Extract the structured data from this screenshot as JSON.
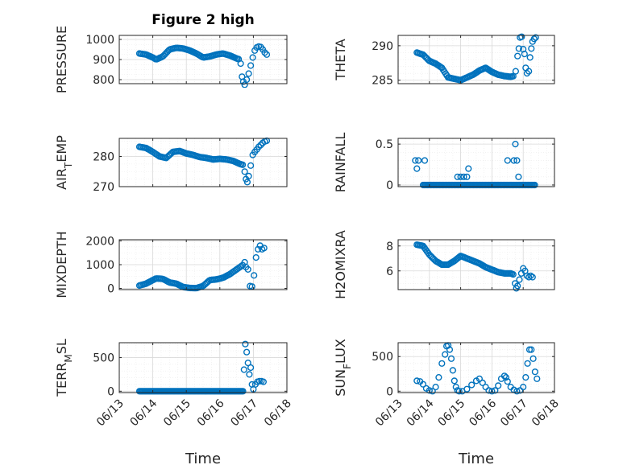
{
  "figure": {
    "title": "Figure 2 high"
  },
  "style": {
    "marker_color": "#0072BD",
    "grid_major": "#d9d9d9",
    "grid_minor": "#ebebeb",
    "axis_color": "#262626"
  },
  "chart_data": [
    {
      "type": "scatter",
      "ylabel": "PRESSURE",
      "xlabel": "",
      "xlim": [
        0,
        5
      ],
      "xticks": [
        0,
        1,
        2,
        3,
        4,
        5
      ],
      "xticklabels": [],
      "ylim": [
        780,
        1020
      ],
      "yticks": [
        800,
        900,
        1000
      ],
      "ytickLabels": [
        "800",
        "900",
        "1000"
      ],
      "x_minor_step": 0.25,
      "y_minor_step": 25,
      "grid": true,
      "knots": [
        [
          0.6,
          930
        ],
        [
          0.8,
          925
        ],
        [
          1.0,
          910
        ],
        [
          1.1,
          900
        ],
        [
          1.3,
          915
        ],
        [
          1.5,
          950
        ],
        [
          1.7,
          958
        ],
        [
          1.9,
          955
        ],
        [
          2.1,
          945
        ],
        [
          2.3,
          930
        ],
        [
          2.5,
          910
        ],
        [
          2.7,
          915
        ],
        [
          2.9,
          925
        ],
        [
          3.1,
          930
        ],
        [
          3.3,
          920
        ],
        [
          3.5,
          905
        ],
        [
          3.6,
          900
        ]
      ],
      "extra_points": [
        [
          3.62,
          880
        ],
        [
          3.66,
          815
        ],
        [
          3.7,
          790
        ],
        [
          3.74,
          775
        ],
        [
          3.8,
          800
        ],
        [
          3.86,
          830
        ],
        [
          3.92,
          870
        ],
        [
          3.98,
          910
        ],
        [
          4.04,
          945
        ],
        [
          4.1,
          960
        ],
        [
          4.16,
          965
        ],
        [
          4.22,
          962
        ],
        [
          4.28,
          950
        ],
        [
          4.34,
          935
        ],
        [
          4.4,
          925
        ]
      ]
    },
    {
      "type": "scatter",
      "ylabel": "THETA",
      "xlabel": "",
      "xlim": [
        0,
        5
      ],
      "xticks": [
        0,
        1,
        2,
        3,
        4,
        5
      ],
      "xticklabels": [],
      "ylim": [
        284.5,
        291.5
      ],
      "yticks": [
        285,
        290
      ],
      "ytickLabels": [
        "285",
        "290"
      ],
      "x_minor_step": 0.25,
      "y_minor_step": 1,
      "grid": true,
      "knots": [
        [
          0.6,
          289
        ],
        [
          0.8,
          288.7
        ],
        [
          1.0,
          287.8
        ],
        [
          1.2,
          287.4
        ],
        [
          1.4,
          286.8
        ],
        [
          1.6,
          285.4
        ],
        [
          1.8,
          285.2
        ],
        [
          2.0,
          285.0
        ],
        [
          2.2,
          285.4
        ],
        [
          2.4,
          285.8
        ],
        [
          2.6,
          286.4
        ],
        [
          2.8,
          286.8
        ],
        [
          3.0,
          286.2
        ],
        [
          3.2,
          285.8
        ],
        [
          3.4,
          285.6
        ],
        [
          3.6,
          285.5
        ],
        [
          3.7,
          285.6
        ]
      ],
      "extra_points": [
        [
          3.76,
          286.3
        ],
        [
          3.82,
          288.5
        ],
        [
          3.86,
          289.6
        ],
        [
          3.9,
          291.2
        ],
        [
          3.95,
          291.3
        ],
        [
          4.0,
          289.5
        ],
        [
          4.04,
          288.8
        ],
        [
          4.08,
          286.8
        ],
        [
          4.12,
          286.0
        ],
        [
          4.18,
          286.3
        ],
        [
          4.22,
          288.3
        ],
        [
          4.26,
          289.6
        ],
        [
          4.3,
          290.6
        ],
        [
          4.35,
          291.0
        ],
        [
          4.4,
          291.2
        ]
      ]
    },
    {
      "type": "scatter",
      "ylabel": "AIR_TEMP",
      "xlabel": "",
      "xlim": [
        0,
        5
      ],
      "xticks": [
        0,
        1,
        2,
        3,
        4,
        5
      ],
      "xticklabels": [],
      "ylim": [
        270,
        286
      ],
      "yticks": [
        270,
        280
      ],
      "ytickLabels": [
        "270",
        "280"
      ],
      "x_minor_step": 0.25,
      "y_minor_step": 2.5,
      "grid": true,
      "knots": [
        [
          0.6,
          283.2
        ],
        [
          0.8,
          282.8
        ],
        [
          1.0,
          281.5
        ],
        [
          1.2,
          280.0
        ],
        [
          1.4,
          279.5
        ],
        [
          1.6,
          281.5
        ],
        [
          1.8,
          281.8
        ],
        [
          2.0,
          281.0
        ],
        [
          2.2,
          280.5
        ],
        [
          2.4,
          279.8
        ],
        [
          2.6,
          279.5
        ],
        [
          2.8,
          279.0
        ],
        [
          3.0,
          279.2
        ],
        [
          3.2,
          279.0
        ],
        [
          3.4,
          278.5
        ],
        [
          3.6,
          277.5
        ],
        [
          3.7,
          277.2
        ]
      ],
      "extra_points": [
        [
          3.74,
          275
        ],
        [
          3.78,
          272.5
        ],
        [
          3.82,
          271.5
        ],
        [
          3.86,
          273.5
        ],
        [
          3.92,
          277
        ],
        [
          3.98,
          280.5
        ],
        [
          4.04,
          281.5
        ],
        [
          4.1,
          282.3
        ],
        [
          4.16,
          283.2
        ],
        [
          4.22,
          283.8
        ],
        [
          4.28,
          284.5
        ],
        [
          4.34,
          285.0
        ],
        [
          4.4,
          285.2
        ]
      ]
    },
    {
      "type": "scatter",
      "ylabel": "RAINFALL",
      "xlabel": "",
      "xlim": [
        0,
        5
      ],
      "xticks": [
        0,
        1,
        2,
        3,
        4,
        5
      ],
      "xticklabels": [],
      "ylim": [
        -0.02,
        0.57
      ],
      "yticks": [
        0,
        0.5
      ],
      "ytickLabels": [
        "0",
        "0.5"
      ],
      "x_minor_step": 0.25,
      "y_minor_step": 0.1,
      "grid": true,
      "knots": [],
      "zero_run": [
        0.8,
        4.4,
        0.035
      ],
      "extra_points": [
        [
          0.55,
          0.3
        ],
        [
          0.6,
          0.2
        ],
        [
          0.65,
          0.3
        ],
        [
          0.85,
          0.3
        ],
        [
          1.9,
          0.1
        ],
        [
          2.0,
          0.1
        ],
        [
          2.1,
          0.1
        ],
        [
          2.2,
          0.1
        ],
        [
          2.25,
          0.2
        ],
        [
          3.5,
          0.3
        ],
        [
          3.7,
          0.3
        ],
        [
          3.75,
          0.5
        ],
        [
          3.8,
          0.3
        ],
        [
          3.85,
          0.1
        ]
      ]
    },
    {
      "type": "scatter",
      "ylabel": "MIXDEPTH",
      "xlabel": "",
      "xlim": [
        0,
        5
      ],
      "xticks": [
        0,
        1,
        2,
        3,
        4,
        5
      ],
      "xticklabels": [],
      "ylim": [
        -50,
        2050
      ],
      "yticks": [
        0,
        1000,
        2000
      ],
      "ytickLabels": [
        "0",
        "1000",
        "2000"
      ],
      "x_minor_step": 0.25,
      "y_minor_step": 250,
      "grid": true,
      "knots": [
        [
          0.6,
          120
        ],
        [
          0.8,
          200
        ],
        [
          1.0,
          350
        ],
        [
          1.1,
          420
        ],
        [
          1.3,
          400
        ],
        [
          1.5,
          250
        ],
        [
          1.7,
          200
        ],
        [
          1.9,
          60
        ],
        [
          2.1,
          20
        ],
        [
          2.3,
          10
        ],
        [
          2.5,
          100
        ],
        [
          2.7,
          350
        ],
        [
          2.9,
          380
        ],
        [
          3.1,
          450
        ],
        [
          3.3,
          600
        ],
        [
          3.5,
          800
        ],
        [
          3.7,
          1000
        ]
      ],
      "extra_points": [
        [
          3.74,
          1100
        ],
        [
          3.78,
          900
        ],
        [
          3.84,
          800
        ],
        [
          3.9,
          100
        ],
        [
          3.96,
          80
        ],
        [
          4.02,
          550
        ],
        [
          4.08,
          1300
        ],
        [
          4.14,
          1650
        ],
        [
          4.2,
          1800
        ],
        [
          4.26,
          1650
        ],
        [
          4.32,
          1700
        ]
      ]
    },
    {
      "type": "scatter",
      "ylabel": "H2OMIXRA",
      "xlabel": "",
      "xlim": [
        0,
        5
      ],
      "xticks": [
        0,
        1,
        2,
        3,
        4,
        5
      ],
      "xticklabels": [],
      "ylim": [
        4.5,
        8.5
      ],
      "yticks": [
        6,
        8
      ],
      "ytickLabels": [
        "6",
        "8"
      ],
      "x_minor_step": 0.25,
      "y_minor_step": 0.5,
      "grid": true,
      "knots": [
        [
          0.6,
          8.1
        ],
        [
          0.8,
          8.0
        ],
        [
          1.0,
          7.3
        ],
        [
          1.2,
          6.8
        ],
        [
          1.4,
          6.5
        ],
        [
          1.6,
          6.5
        ],
        [
          1.8,
          6.8
        ],
        [
          2.0,
          7.2
        ],
        [
          2.2,
          7.0
        ],
        [
          2.4,
          6.8
        ],
        [
          2.6,
          6.6
        ],
        [
          2.8,
          6.3
        ],
        [
          3.0,
          6.1
        ],
        [
          3.2,
          5.9
        ],
        [
          3.4,
          5.8
        ],
        [
          3.6,
          5.8
        ],
        [
          3.7,
          5.7
        ]
      ],
      "extra_points": [
        [
          3.74,
          5.0
        ],
        [
          3.78,
          4.6
        ],
        [
          3.82,
          4.8
        ],
        [
          3.88,
          5.3
        ],
        [
          3.94,
          5.8
        ],
        [
          4.0,
          6.2
        ],
        [
          4.06,
          6.0
        ],
        [
          4.12,
          5.6
        ],
        [
          4.18,
          5.5
        ],
        [
          4.24,
          5.6
        ],
        [
          4.3,
          5.5
        ]
      ]
    },
    {
      "type": "scatter",
      "ylabel": "TERR_MSL",
      "xlabel": "Time",
      "xlim": [
        0,
        5
      ],
      "xticks": [
        0,
        1,
        2,
        3,
        4,
        5
      ],
      "xticklabels": [
        "06/13",
        "06/14",
        "06/15",
        "06/16",
        "06/17",
        "06/18"
      ],
      "ylim": [
        -20,
        720
      ],
      "yticks": [
        0,
        500
      ],
      "ytickLabels": [
        "0",
        "500"
      ],
      "x_minor_step": 0.25,
      "y_minor_step": 100,
      "grid": true,
      "knots": [],
      "zero_run": [
        0.6,
        3.7,
        0.03
      ],
      "extra_points": [
        [
          3.72,
          320
        ],
        [
          3.76,
          700
        ],
        [
          3.8,
          580
        ],
        [
          3.84,
          420
        ],
        [
          3.88,
          250
        ],
        [
          3.92,
          350
        ],
        [
          3.96,
          100
        ],
        [
          4.0,
          30
        ],
        [
          4.06,
          100
        ],
        [
          4.12,
          140
        ],
        [
          4.18,
          150
        ],
        [
          4.24,
          150
        ],
        [
          4.3,
          140
        ]
      ]
    },
    {
      "type": "scatter",
      "ylabel": "SUN_FLUX",
      "xlabel": "Time",
      "xlim": [
        0,
        5
      ],
      "xticks": [
        0,
        1,
        2,
        3,
        4,
        5
      ],
      "xticklabels": [
        "06/13",
        "06/14",
        "06/15",
        "06/16",
        "06/17",
        "06/18"
      ],
      "ylim": [
        -20,
        700
      ],
      "yticks": [
        0,
        500
      ],
      "ytickLabels": [
        "0",
        "500"
      ],
      "x_minor_step": 0.25,
      "y_minor_step": 100,
      "grid": true,
      "knots": [],
      "extra_points": [
        [
          0.6,
          150
        ],
        [
          0.7,
          140
        ],
        [
          0.8,
          100
        ],
        [
          0.9,
          40
        ],
        [
          1.0,
          10
        ],
        [
          1.1,
          0
        ],
        [
          1.2,
          60
        ],
        [
          1.3,
          200
        ],
        [
          1.4,
          400
        ],
        [
          1.5,
          530
        ],
        [
          1.55,
          650
        ],
        [
          1.6,
          660
        ],
        [
          1.65,
          600
        ],
        [
          1.7,
          470
        ],
        [
          1.75,
          300
        ],
        [
          1.8,
          150
        ],
        [
          1.85,
          60
        ],
        [
          1.9,
          10
        ],
        [
          1.95,
          0
        ],
        [
          2.05,
          0
        ],
        [
          2.2,
          30
        ],
        [
          2.35,
          90
        ],
        [
          2.5,
          150
        ],
        [
          2.6,
          180
        ],
        [
          2.7,
          120
        ],
        [
          2.8,
          60
        ],
        [
          2.9,
          10
        ],
        [
          3.0,
          0
        ],
        [
          3.1,
          10
        ],
        [
          3.2,
          80
        ],
        [
          3.3,
          180
        ],
        [
          3.4,
          220
        ],
        [
          3.45,
          200
        ],
        [
          3.5,
          140
        ],
        [
          3.6,
          60
        ],
        [
          3.7,
          20
        ],
        [
          3.8,
          0
        ],
        [
          3.9,
          10
        ],
        [
          4.0,
          60
        ],
        [
          4.08,
          200
        ],
        [
          4.14,
          400
        ],
        [
          4.2,
          600
        ],
        [
          4.26,
          600
        ],
        [
          4.32,
          470
        ],
        [
          4.38,
          280
        ],
        [
          4.44,
          180
        ]
      ]
    }
  ]
}
